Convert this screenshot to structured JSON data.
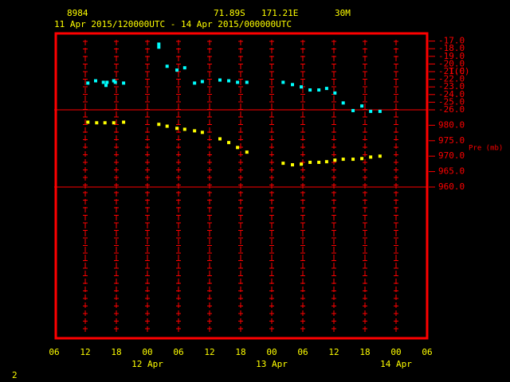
{
  "chart_data": {
    "type": "scatter",
    "station": "8984",
    "latitude": "71.89S",
    "longitude": "171.21E",
    "elevation": "30M",
    "title": "11 Apr 2015/120000UTC - 14 Apr 2015/000000UTC",
    "footer": "2",
    "xlim": [
      0,
      72
    ],
    "xticks": [
      {
        "value": 0,
        "label": "06"
      },
      {
        "value": 6,
        "label": "12"
      },
      {
        "value": 12,
        "label": "18"
      },
      {
        "value": 18,
        "label": "00"
      },
      {
        "value": 24,
        "label": "06"
      },
      {
        "value": 30,
        "label": "12"
      },
      {
        "value": 36,
        "label": "18"
      },
      {
        "value": 42,
        "label": "00"
      },
      {
        "value": 48,
        "label": "06"
      },
      {
        "value": 54,
        "label": "12"
      },
      {
        "value": 60,
        "label": "18"
      },
      {
        "value": 66,
        "label": "00"
      },
      {
        "value": 72,
        "label": "06"
      }
    ],
    "x_date_labels": [
      {
        "value": 18,
        "label": "12 Apr"
      },
      {
        "value": 42,
        "label": "13 Apr"
      },
      {
        "value": 66,
        "label": "14 Apr"
      }
    ],
    "ylabel": "T(C)",
    "ylim": [
      -26,
      -16
    ],
    "yticks": [
      {
        "value": -17,
        "label": "-17.0"
      },
      {
        "value": -18,
        "label": "-18.0"
      },
      {
        "value": -19,
        "label": "-19.0"
      },
      {
        "value": -20,
        "label": "-20.0"
      },
      {
        "value": -21,
        "label": "-21.0"
      },
      {
        "value": -22,
        "label": "-22.0"
      },
      {
        "value": -23,
        "label": "-23.0"
      },
      {
        "value": -24,
        "label": "-24.0"
      },
      {
        "value": -25,
        "label": "-25.0"
      },
      {
        "value": -26,
        "label": "-26.0"
      }
    ],
    "y2label": "Pre (mb)",
    "y2lim": [
      960,
      985
    ],
    "y2ticks": [
      {
        "value": 980,
        "label": "980.0"
      },
      {
        "value": 975,
        "label": "975.0"
      },
      {
        "value": 970,
        "label": "970.0"
      },
      {
        "value": 965,
        "label": "965.0"
      },
      {
        "value": 960,
        "label": "960.0"
      }
    ],
    "series": [
      {
        "name": "T(C)",
        "color": "#00ffff",
        "x": [
          6.5,
          8,
          9.5,
          10,
          10.2,
          11.5,
          11.8,
          13.4,
          20.2,
          20.2,
          21.8,
          23.7,
          25.2,
          27.1,
          28.6,
          32,
          33.7,
          35.4,
          37.2,
          44.2,
          46,
          47.7,
          49.4,
          51.1,
          52.6,
          54.2,
          55.8,
          57.7,
          59.4,
          61.1,
          62.9
        ],
        "values": [
          -22.5,
          -22.2,
          -22.4,
          -22.8,
          -22.4,
          -22.2,
          -22.4,
          -22.5,
          -17.8,
          -17.4,
          -20.3,
          -20.8,
          -20.5,
          -22.5,
          -22.3,
          -22.1,
          -22.2,
          -22.4,
          -22.4,
          -22.4,
          -22.7,
          -23.0,
          -23.4,
          -23.4,
          -23.2,
          -23.8,
          -25.1,
          -26.1,
          -25.5,
          -26.2,
          -26.2
        ]
      },
      {
        "name": "Pre (mb)",
        "color": "#ffff00",
        "axis": "y2",
        "x": [
          6.5,
          8.2,
          9.8,
          11.5,
          13.4,
          20.2,
          21.8,
          23.7,
          25.2,
          27.1,
          28.6,
          32,
          33.7,
          35.4,
          37.2,
          44.2,
          46,
          47.7,
          49.4,
          51.1,
          52.6,
          54.2,
          55.8,
          57.7,
          59.4,
          61.1,
          62.9
        ],
        "values": [
          981,
          980.8,
          980.8,
          980.8,
          981,
          980.3,
          979.7,
          979,
          978.7,
          978.2,
          977.7,
          975.6,
          974.4,
          972.8,
          971.3,
          967.7,
          967.2,
          967.4,
          968,
          968,
          968.2,
          968.7,
          969,
          969,
          969.2,
          969.7,
          970
        ]
      }
    ]
  }
}
